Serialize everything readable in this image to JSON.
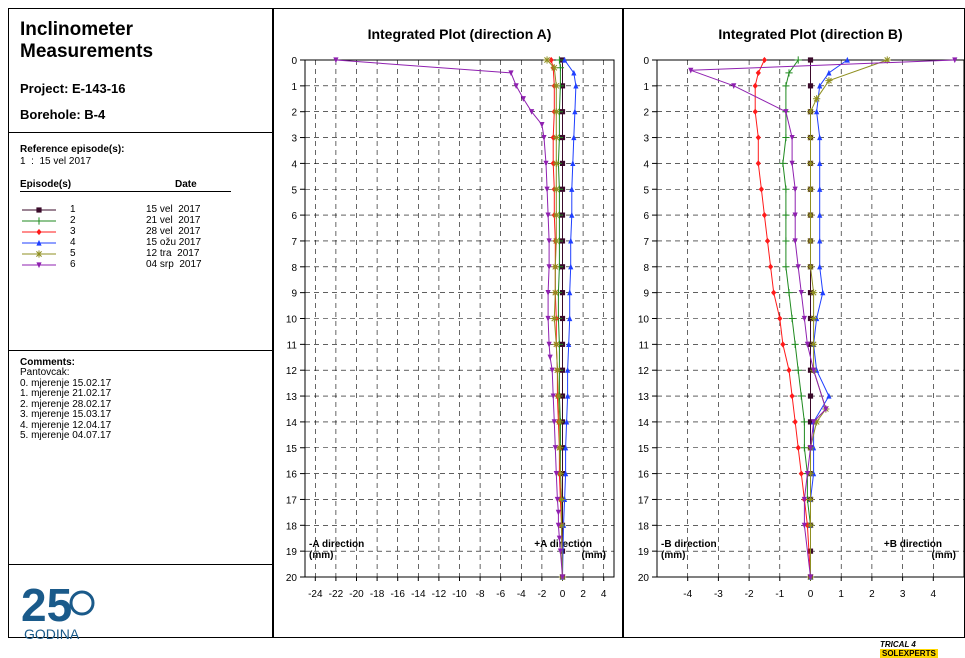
{
  "header": {
    "title_line1": "Inclinometer",
    "title_line2": "Measurements",
    "project": "Project: E-143-16",
    "borehole": "Borehole: B-4"
  },
  "reference": {
    "label": "Reference episode(s):",
    "value": "1  :  15 vel 2017"
  },
  "episodes": {
    "header_episode": "Episode(s)",
    "header_date": "Date",
    "items": [
      {
        "num": "1",
        "date": "15 vel  2017",
        "color": "#3a0a2a",
        "marker": "square"
      },
      {
        "num": "2",
        "date": "21 vel  2017",
        "color": "#1f8a1f",
        "marker": "plus"
      },
      {
        "num": "3",
        "date": "28 vel  2017",
        "color": "#ff1a1a",
        "marker": "diamond"
      },
      {
        "num": "4",
        "date": "15 ožu 2017",
        "color": "#1f3fff",
        "marker": "triangle-up"
      },
      {
        "num": "5",
        "date": "12 tra  2017",
        "color": "#8f8f20",
        "marker": "star"
      },
      {
        "num": "6",
        "date": "04 srp  2017",
        "color": "#8f20b0",
        "marker": "triangle-down"
      }
    ]
  },
  "comments": {
    "label": "Comments:",
    "lines": [
      "Pantovcak:",
      "0. mjerenje 15.02.17",
      "1. mjerenje 21.02.17",
      "2. mjerenje 28.02.17",
      "3. mjerenje 15.03.17",
      "4. mjerenje 12.04.17",
      "5. mjerenje 04.07.17"
    ]
  },
  "logo": {
    "number": "25",
    "text": "GODINA",
    "color": "#1a5a8a"
  },
  "footer": {
    "text": "TRICAL 4",
    "badge": "SOLEXPERTS"
  },
  "chart_data": [
    {
      "type": "line",
      "title": "Integrated Plot (direction A)",
      "xlabel_left": "-A direction\n(mm)",
      "xlabel_right": "+A direction\n(mm)",
      "xlim": [
        -25,
        5
      ],
      "xticks": [
        -24,
        -22,
        -20,
        -18,
        -16,
        -14,
        -12,
        -10,
        -8,
        -6,
        -4,
        -2,
        0,
        2,
        4
      ],
      "ylim": [
        0,
        20
      ],
      "yticks": [
        0,
        1,
        2,
        3,
        4,
        5,
        6,
        7,
        8,
        9,
        10,
        11,
        12,
        13,
        14,
        15,
        16,
        17,
        18,
        19,
        20
      ],
      "y_inverted": true,
      "grid": true,
      "series": [
        {
          "name": "1",
          "x": [
            0,
            0,
            0,
            0,
            0,
            0,
            0,
            0,
            0,
            0,
            0,
            0,
            0,
            0,
            0,
            0,
            0,
            0,
            0,
            0,
            0
          ],
          "y": [
            0,
            1,
            2,
            3,
            4,
            5,
            6,
            7,
            8,
            9,
            10,
            11,
            12,
            13,
            14,
            15,
            16,
            17,
            18,
            19,
            20
          ]
        },
        {
          "name": "2",
          "x": [
            -0.3,
            -0.2,
            -0.2,
            -0.3,
            -0.3,
            -0.4,
            -0.3,
            -0.3,
            -0.3,
            -0.3,
            -0.4,
            -0.4,
            -0.3,
            -0.3,
            -0.3,
            -0.2,
            -0.2,
            -0.2,
            -0.1,
            -0.1,
            0
          ],
          "y": [
            0,
            0.3,
            1,
            2,
            3,
            4,
            5,
            6,
            7,
            8,
            9,
            10,
            11,
            12,
            13,
            14,
            15,
            16,
            17,
            18,
            20
          ]
        },
        {
          "name": "3",
          "x": [
            -1.1,
            -0.9,
            -0.8,
            -0.8,
            -0.9,
            -0.9,
            -0.8,
            -0.8,
            -0.7,
            -0.7,
            -0.7,
            -0.6,
            -0.6,
            -0.5,
            -0.5,
            -0.4,
            -0.3,
            -0.3,
            -0.2,
            -0.1,
            0
          ],
          "y": [
            0,
            0.3,
            1,
            2,
            3,
            4,
            5,
            6,
            7,
            8,
            9,
            10,
            11,
            12,
            13,
            14,
            15,
            16,
            17,
            18,
            20
          ]
        },
        {
          "name": "4",
          "x": [
            0.2,
            1.1,
            1.3,
            1.2,
            1.1,
            1.0,
            0.9,
            0.9,
            0.8,
            0.8,
            0.7,
            0.7,
            0.6,
            0.5,
            0.5,
            0.4,
            0.3,
            0.3,
            0.2,
            0.1,
            0
          ],
          "y": [
            0,
            0.5,
            1,
            2,
            3,
            4,
            5,
            6,
            7,
            8,
            9,
            10,
            11,
            12,
            13,
            14,
            15,
            16,
            17,
            18,
            20
          ]
        },
        {
          "name": "5",
          "x": [
            -1.5,
            -0.8,
            -0.6,
            -0.6,
            -0.6,
            -0.6,
            -0.6,
            -0.6,
            -0.6,
            -0.7,
            -0.7,
            -0.8,
            -0.6,
            -0.5,
            -0.4,
            -0.3,
            -0.3,
            -0.2,
            -0.1,
            -0.1,
            0
          ],
          "y": [
            0,
            0.3,
            1,
            2,
            3,
            4,
            5,
            6,
            7,
            8,
            9,
            10,
            11,
            12,
            13,
            14,
            15,
            16,
            17,
            18,
            20
          ]
        },
        {
          "name": "6",
          "x": [
            -22,
            -5,
            -4.5,
            -3.8,
            -3,
            -2,
            -1.8,
            -1.6,
            -1.5,
            -1.4,
            -1.3,
            -1.3,
            -1.4,
            -1.4,
            -1.3,
            -1.2,
            -1.0,
            -0.9,
            -0.8,
            -0.7,
            -0.6,
            -0.5,
            -0.4,
            -0.4,
            -0.3,
            -0.2,
            0
          ],
          "y": [
            0,
            0.5,
            1,
            1.5,
            2,
            2.5,
            3,
            4,
            5,
            6,
            7,
            8,
            9,
            10,
            11,
            11.5,
            12,
            13,
            14,
            15,
            16,
            17,
            17.5,
            18,
            18.5,
            19,
            20
          ]
        }
      ]
    },
    {
      "type": "line",
      "title": "Integrated Plot (direction B)",
      "xlabel_left": "-B direction\n(mm)",
      "xlabel_right": "+B direction\n(mm)",
      "xlim": [
        -5,
        5
      ],
      "xticks": [
        -4,
        -3,
        -2,
        -1,
        0,
        1,
        2,
        3,
        4
      ],
      "ylim": [
        0,
        20
      ],
      "yticks": [
        0,
        1,
        2,
        3,
        4,
        5,
        6,
        7,
        8,
        9,
        10,
        11,
        12,
        13,
        14,
        15,
        16,
        17,
        18,
        19,
        20
      ],
      "y_inverted": true,
      "grid": true,
      "series": [
        {
          "name": "1",
          "x": [
            0,
            0,
            0,
            0,
            0,
            0,
            0,
            0,
            0,
            0,
            0,
            0,
            0,
            0,
            0,
            0,
            0,
            0,
            0,
            0,
            0
          ],
          "y": [
            0,
            1,
            2,
            3,
            4,
            5,
            6,
            7,
            8,
            9,
            10,
            11,
            12,
            13,
            14,
            15,
            16,
            17,
            18,
            19,
            20
          ]
        },
        {
          "name": "2",
          "x": [
            -0.4,
            -0.7,
            -0.8,
            -0.8,
            -0.8,
            -0.9,
            -0.8,
            -0.8,
            -0.8,
            -0.8,
            -0.7,
            -0.6,
            -0.5,
            -0.4,
            -0.3,
            -0.2,
            -0.2,
            -0.1,
            -0.1,
            0,
            0
          ],
          "y": [
            0,
            0.5,
            1,
            2,
            3,
            4,
            5,
            6,
            7,
            8,
            9,
            10,
            11,
            12,
            13,
            14,
            15,
            16,
            17,
            18,
            20
          ]
        },
        {
          "name": "3",
          "x": [
            -1.5,
            -1.7,
            -1.8,
            -1.8,
            -1.7,
            -1.7,
            -1.6,
            -1.5,
            -1.4,
            -1.3,
            -1.2,
            -1.0,
            -0.9,
            -0.7,
            -0.6,
            -0.5,
            -0.4,
            -0.3,
            -0.2,
            -0.1,
            0
          ],
          "y": [
            0,
            0.5,
            1,
            2,
            3,
            4,
            5,
            6,
            7,
            8,
            9,
            10,
            11,
            12,
            13,
            14,
            15,
            16,
            17,
            18,
            20
          ]
        },
        {
          "name": "4",
          "x": [
            1.2,
            0.6,
            0.3,
            0.2,
            0.3,
            0.3,
            0.3,
            0.3,
            0.3,
            0.3,
            0.4,
            0.2,
            0.1,
            0.2,
            0.6,
            0.1,
            0.1,
            0.1,
            0,
            0,
            0
          ],
          "y": [
            0,
            0.5,
            1,
            2,
            3,
            4,
            5,
            6,
            7,
            8,
            9,
            10,
            11,
            12,
            13,
            14,
            15,
            16,
            17,
            18,
            20
          ]
        },
        {
          "name": "5",
          "x": [
            2.5,
            0.6,
            0.2,
            0,
            0,
            0,
            0,
            0,
            0,
            0,
            0.1,
            0.1,
            0.1,
            0.1,
            0.5,
            0.2,
            0,
            0,
            0,
            0,
            0
          ],
          "y": [
            0,
            0.8,
            1.5,
            2,
            3,
            4,
            5,
            6,
            7,
            8,
            9,
            10,
            11,
            12,
            13.5,
            14,
            15,
            16,
            17,
            18,
            20
          ]
        },
        {
          "name": "6",
          "x": [
            4.7,
            -3.9,
            -2.5,
            -0.8,
            -0.6,
            -0.6,
            -0.5,
            -0.5,
            -0.5,
            -0.4,
            -0.3,
            -0.2,
            -0.1,
            0.1,
            0.5,
            0.1,
            0,
            -0.1,
            -0.2,
            -0.2,
            0
          ],
          "y": [
            0,
            0.4,
            1,
            2,
            3,
            4,
            5,
            6,
            7,
            8,
            9,
            10,
            11,
            12,
            13.5,
            14,
            15,
            16,
            17,
            18,
            20
          ]
        }
      ]
    }
  ]
}
